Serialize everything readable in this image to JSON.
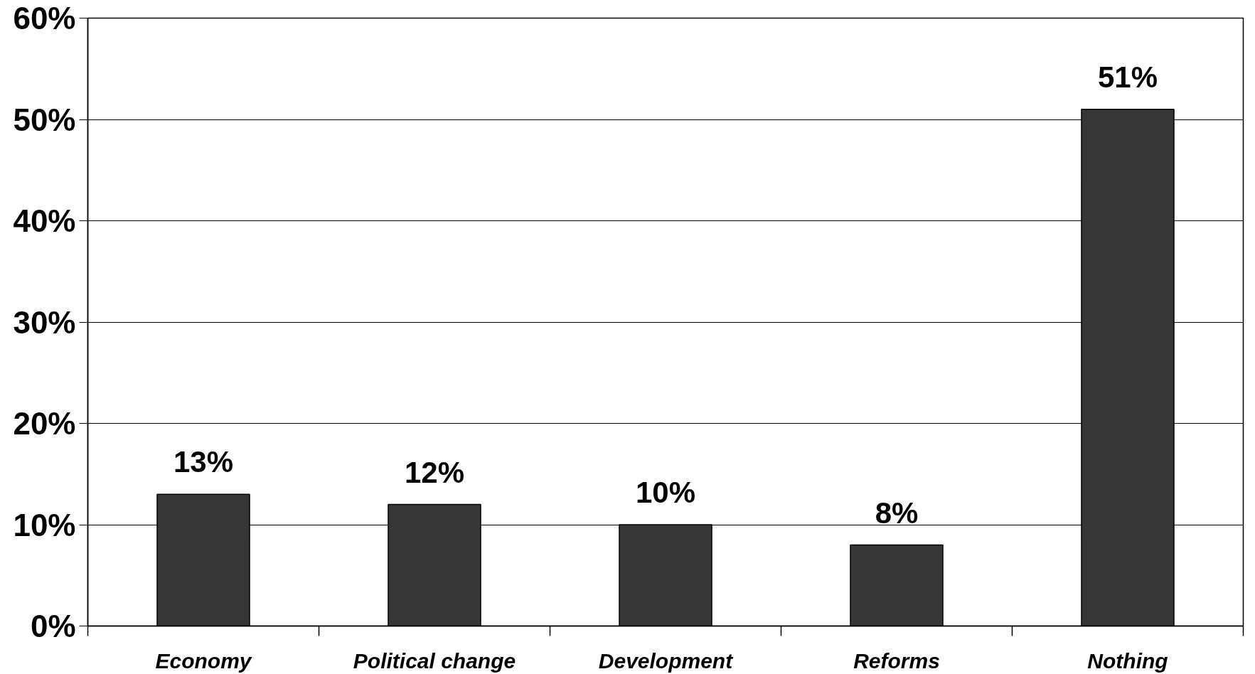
{
  "chart_data": {
    "type": "bar",
    "categories": [
      "Economy",
      "Political change",
      "Development",
      "Reforms",
      "Nothing"
    ],
    "values": [
      13,
      12,
      10,
      8,
      51
    ],
    "value_labels": [
      "13%",
      "12%",
      "10%",
      "8%",
      "51%"
    ],
    "color": "#363636",
    "ylim": [
      0,
      60
    ],
    "yticks": [
      {
        "value": 0,
        "label": "0%"
      },
      {
        "value": 10,
        "label": "10%"
      },
      {
        "value": 20,
        "label": "20%"
      },
      {
        "value": 30,
        "label": "30%"
      },
      {
        "value": 40,
        "label": "40%"
      },
      {
        "value": 50,
        "label": "50%"
      },
      {
        "value": 60,
        "label": "60%"
      }
    ],
    "grid": "y"
  }
}
